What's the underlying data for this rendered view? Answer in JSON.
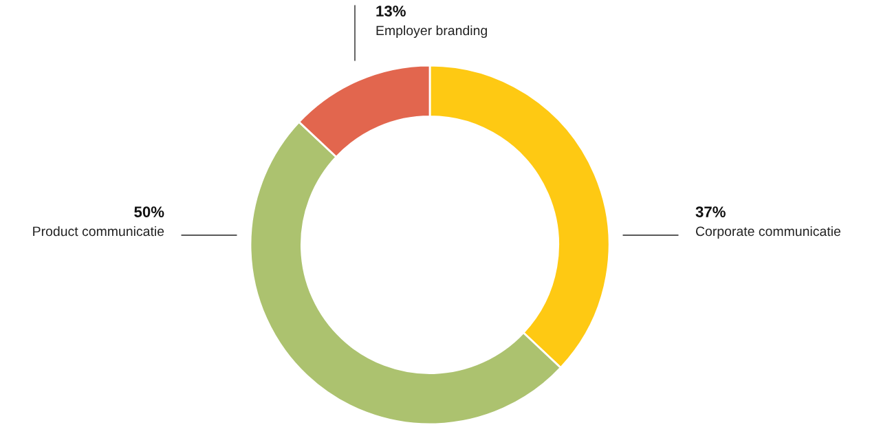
{
  "chart_data": {
    "type": "donut",
    "categories": [
      "Corporate communicatie",
      "Product communicatie",
      "Employer branding"
    ],
    "values": [
      37,
      50,
      13
    ],
    "colors": [
      "#fec913",
      "#acc26f",
      "#e2664e"
    ],
    "value_labels": [
      "37%",
      "50%",
      "13%"
    ]
  }
}
